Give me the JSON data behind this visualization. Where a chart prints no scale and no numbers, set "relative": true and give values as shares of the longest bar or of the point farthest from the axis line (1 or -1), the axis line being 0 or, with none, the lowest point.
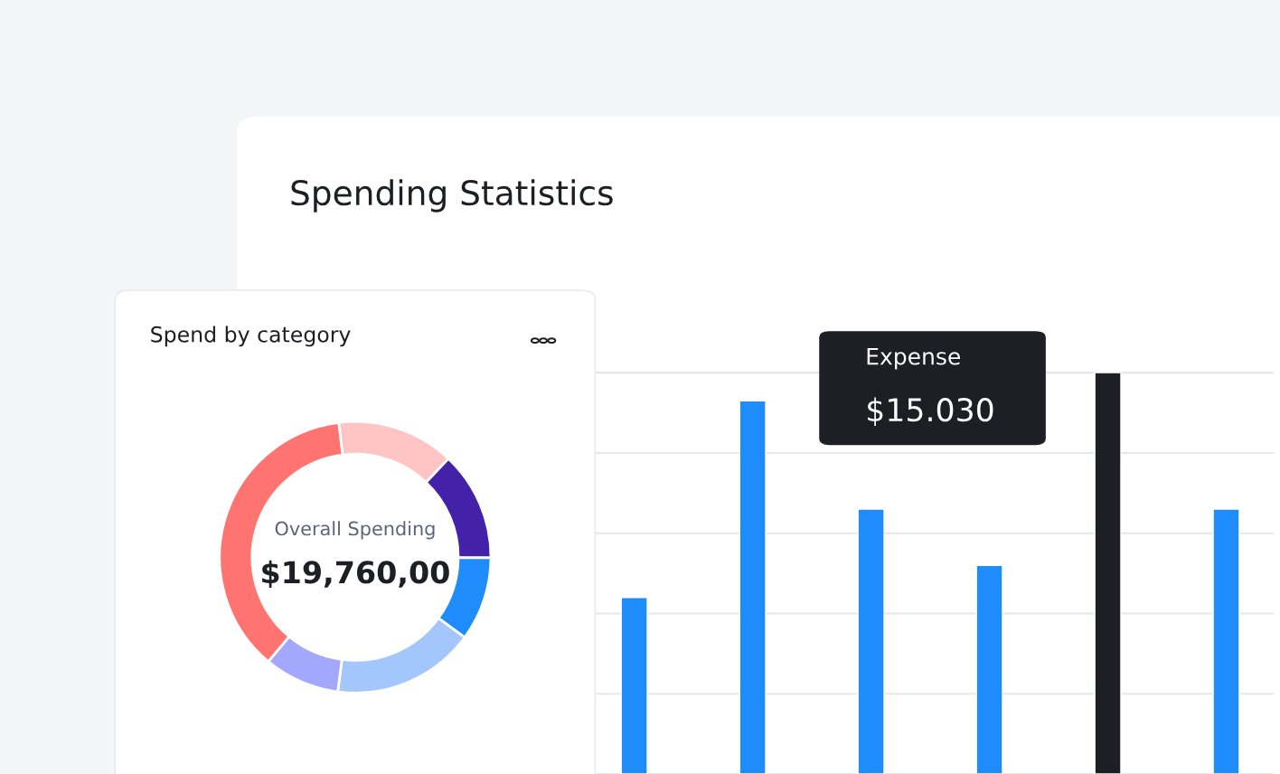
{
  "chart_data": [
    {
      "type": "bar",
      "title": "Spending Statistics",
      "relative": true,
      "grid": "y",
      "categories": [
        null,
        null,
        null,
        null,
        null,
        null
      ],
      "values": [
        0.44,
        0.93,
        0.66,
        0.52,
        1.0,
        0.66
      ],
      "colors": [
        "#1e8cfb",
        "#1e8cfb",
        "#1e8cfb",
        "#1e8cfb",
        "#1e1f24",
        "#1e8cfb"
      ],
      "annotations": [
        "Expense",
        "$15.030"
      ]
    },
    {
      "type": "donut",
      "title": "Spend by category",
      "categories": [
        null,
        null,
        null,
        null,
        null,
        null
      ],
      "values": [
        14,
        13,
        10,
        17,
        9,
        37
      ],
      "colors": [
        "#ffc4c4",
        "#4321a8",
        "#1f8cfb",
        "#a3c6fc",
        "#a4a8fc",
        "#ff7470"
      ],
      "annotations": [
        "Overall Spending",
        "$19,760,00"
      ]
    }
  ]
}
